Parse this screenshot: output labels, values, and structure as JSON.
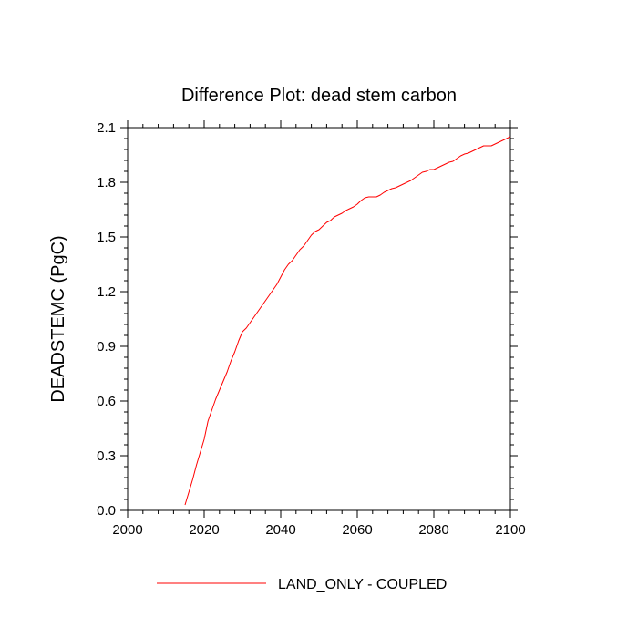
{
  "chart_data": {
    "type": "line",
    "title": "Difference Plot: dead stem carbon",
    "xlabel": "",
    "ylabel": "DEADSTEMC  (PgC)",
    "xlim": [
      2000,
      2100
    ],
    "ylim": [
      0.0,
      2.1
    ],
    "x_major_ticks": [
      2000,
      2020,
      2040,
      2060,
      2080,
      2100
    ],
    "x_tick_labels": [
      "2000",
      "2020",
      "2040",
      "2060",
      "2080",
      "2100"
    ],
    "y_major_ticks": [
      0.0,
      0.3,
      0.6,
      0.9,
      1.2,
      1.5,
      1.8,
      2.1
    ],
    "y_tick_labels": [
      "0.0",
      "0.3",
      "0.6",
      "0.9",
      "1.2",
      "1.5",
      "1.8",
      "2.1"
    ],
    "grid": false,
    "legend_position": "bottom-center",
    "series": [
      {
        "name": "LAND_ONLY - COUPLED",
        "color": "#ff0000",
        "x": [
          2015,
          2016,
          2017,
          2018,
          2019,
          2020,
          2021,
          2022,
          2023,
          2024,
          2025,
          2026,
          2027,
          2028,
          2029,
          2030,
          2031,
          2032,
          2033,
          2034,
          2035,
          2036,
          2037,
          2038,
          2039,
          2040,
          2041,
          2042,
          2043,
          2044,
          2045,
          2046,
          2047,
          2048,
          2049,
          2050,
          2051,
          2052,
          2053,
          2054,
          2055,
          2056,
          2057,
          2058,
          2059,
          2060,
          2061,
          2062,
          2063,
          2064,
          2065,
          2066,
          2067,
          2068,
          2069,
          2070,
          2071,
          2072,
          2073,
          2074,
          2075,
          2076,
          2077,
          2078,
          2079,
          2080,
          2081,
          2082,
          2083,
          2084,
          2085,
          2086,
          2087,
          2088,
          2089,
          2090,
          2091,
          2092,
          2093,
          2094,
          2095,
          2096,
          2097,
          2098,
          2099,
          2100
        ],
        "y": [
          0.03,
          0.1,
          0.17,
          0.25,
          0.32,
          0.39,
          0.49,
          0.55,
          0.61,
          0.66,
          0.71,
          0.76,
          0.82,
          0.87,
          0.93,
          0.98,
          1.0,
          1.03,
          1.06,
          1.09,
          1.12,
          1.15,
          1.18,
          1.21,
          1.24,
          1.28,
          1.32,
          1.35,
          1.37,
          1.4,
          1.43,
          1.45,
          1.48,
          1.51,
          1.53,
          1.54,
          1.56,
          1.58,
          1.59,
          1.61,
          1.62,
          1.63,
          1.645,
          1.655,
          1.665,
          1.68,
          1.7,
          1.715,
          1.72,
          1.72,
          1.72,
          1.73,
          1.745,
          1.755,
          1.765,
          1.77,
          1.78,
          1.79,
          1.8,
          1.81,
          1.825,
          1.84,
          1.855,
          1.86,
          1.87,
          1.87,
          1.88,
          1.89,
          1.9,
          1.91,
          1.915,
          1.93,
          1.945,
          1.955,
          1.96,
          1.97,
          1.98,
          1.99,
          2.0,
          2.0,
          2.0,
          2.01,
          2.02,
          2.03,
          2.04,
          2.05
        ]
      }
    ]
  }
}
